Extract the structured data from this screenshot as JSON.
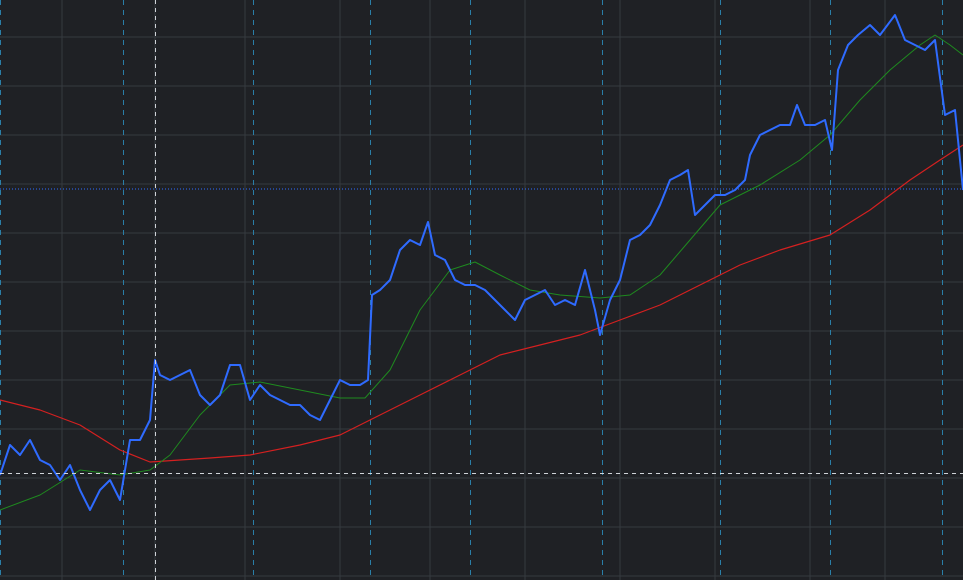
{
  "chart_data": {
    "type": "line",
    "xlim": [
      0,
      963
    ],
    "ylim": [
      0,
      580
    ],
    "xticks": [
      62,
      155,
      245,
      340,
      430,
      525,
      620,
      715,
      810,
      885
    ],
    "yticks": [
      543,
      494,
      445,
      396,
      347,
      298,
      249,
      200,
      151,
      102,
      53,
      4
    ],
    "session_lines": [
      0,
      123,
      253,
      370,
      470,
      602,
      720,
      830,
      942
    ],
    "crosshair": {
      "x": 155,
      "y": 107
    },
    "last_price": 391,
    "grid": true,
    "series": [
      {
        "color": "#d42020",
        "width": 1.2,
        "x": [
          0,
          40,
          80,
          120,
          150,
          180,
          210,
          250,
          300,
          340,
          380,
          420,
          460,
          500,
          540,
          580,
          620,
          660,
          700,
          740,
          780,
          830,
          870,
          910,
          940,
          963
        ],
        "values": [
          180,
          170,
          155,
          130,
          118,
          120,
          122,
          125,
          135,
          145,
          165,
          185,
          205,
          225,
          235,
          245,
          260,
          275,
          295,
          315,
          330,
          345,
          370,
          400,
          420,
          435
        ]
      },
      {
        "color": "#1f8a1f",
        "width": 1,
        "x": [
          0,
          40,
          80,
          120,
          150,
          170,
          200,
          230,
          260,
          300,
          340,
          365,
          390,
          420,
          450,
          475,
          500,
          530,
          560,
          600,
          630,
          660,
          690,
          720,
          760,
          800,
          830,
          860,
          890,
          920,
          935,
          950,
          963
        ],
        "values": [
          70,
          85,
          110,
          105,
          110,
          125,
          165,
          195,
          198,
          190,
          182,
          182,
          210,
          270,
          310,
          318,
          305,
          290,
          285,
          282,
          285,
          305,
          340,
          375,
          395,
          420,
          445,
          480,
          510,
          535,
          545,
          535,
          525
        ]
      },
      {
        "color": "#2f6bff",
        "width": 2,
        "x": [
          0,
          10,
          20,
          30,
          40,
          50,
          60,
          70,
          80,
          90,
          100,
          110,
          120,
          130,
          140,
          150,
          155,
          160,
          170,
          180,
          190,
          200,
          210,
          220,
          230,
          240,
          250,
          260,
          270,
          280,
          290,
          300,
          310,
          320,
          330,
          340,
          350,
          360,
          368,
          372,
          380,
          390,
          400,
          410,
          420,
          428,
          435,
          445,
          455,
          465,
          475,
          485,
          495,
          505,
          515,
          525,
          535,
          545,
          555,
          565,
          575,
          585,
          595,
          600,
          610,
          620,
          630,
          640,
          650,
          660,
          670,
          680,
          688,
          695,
          705,
          715,
          725,
          735,
          745,
          750,
          760,
          770,
          780,
          790,
          797,
          805,
          815,
          825,
          832,
          838,
          848,
          858,
          870,
          880,
          895,
          905,
          915,
          925,
          935,
          945,
          955,
          963
        ],
        "values": [
          105,
          135,
          125,
          140,
          120,
          115,
          100,
          115,
          90,
          70,
          90,
          100,
          80,
          140,
          140,
          160,
          220,
          205,
          200,
          205,
          210,
          185,
          175,
          185,
          215,
          215,
          180,
          195,
          185,
          180,
          175,
          175,
          165,
          160,
          180,
          200,
          195,
          195,
          200,
          285,
          290,
          300,
          330,
          340,
          335,
          358,
          325,
          320,
          300,
          295,
          295,
          290,
          280,
          270,
          260,
          280,
          285,
          290,
          275,
          280,
          275,
          310,
          270,
          245,
          280,
          300,
          340,
          345,
          355,
          375,
          400,
          405,
          410,
          365,
          375,
          385,
          385,
          390,
          400,
          425,
          445,
          450,
          455,
          455,
          475,
          455,
          455,
          460,
          430,
          510,
          535,
          545,
          555,
          545,
          565,
          540,
          535,
          530,
          540,
          465,
          470,
          390
        ]
      }
    ]
  }
}
